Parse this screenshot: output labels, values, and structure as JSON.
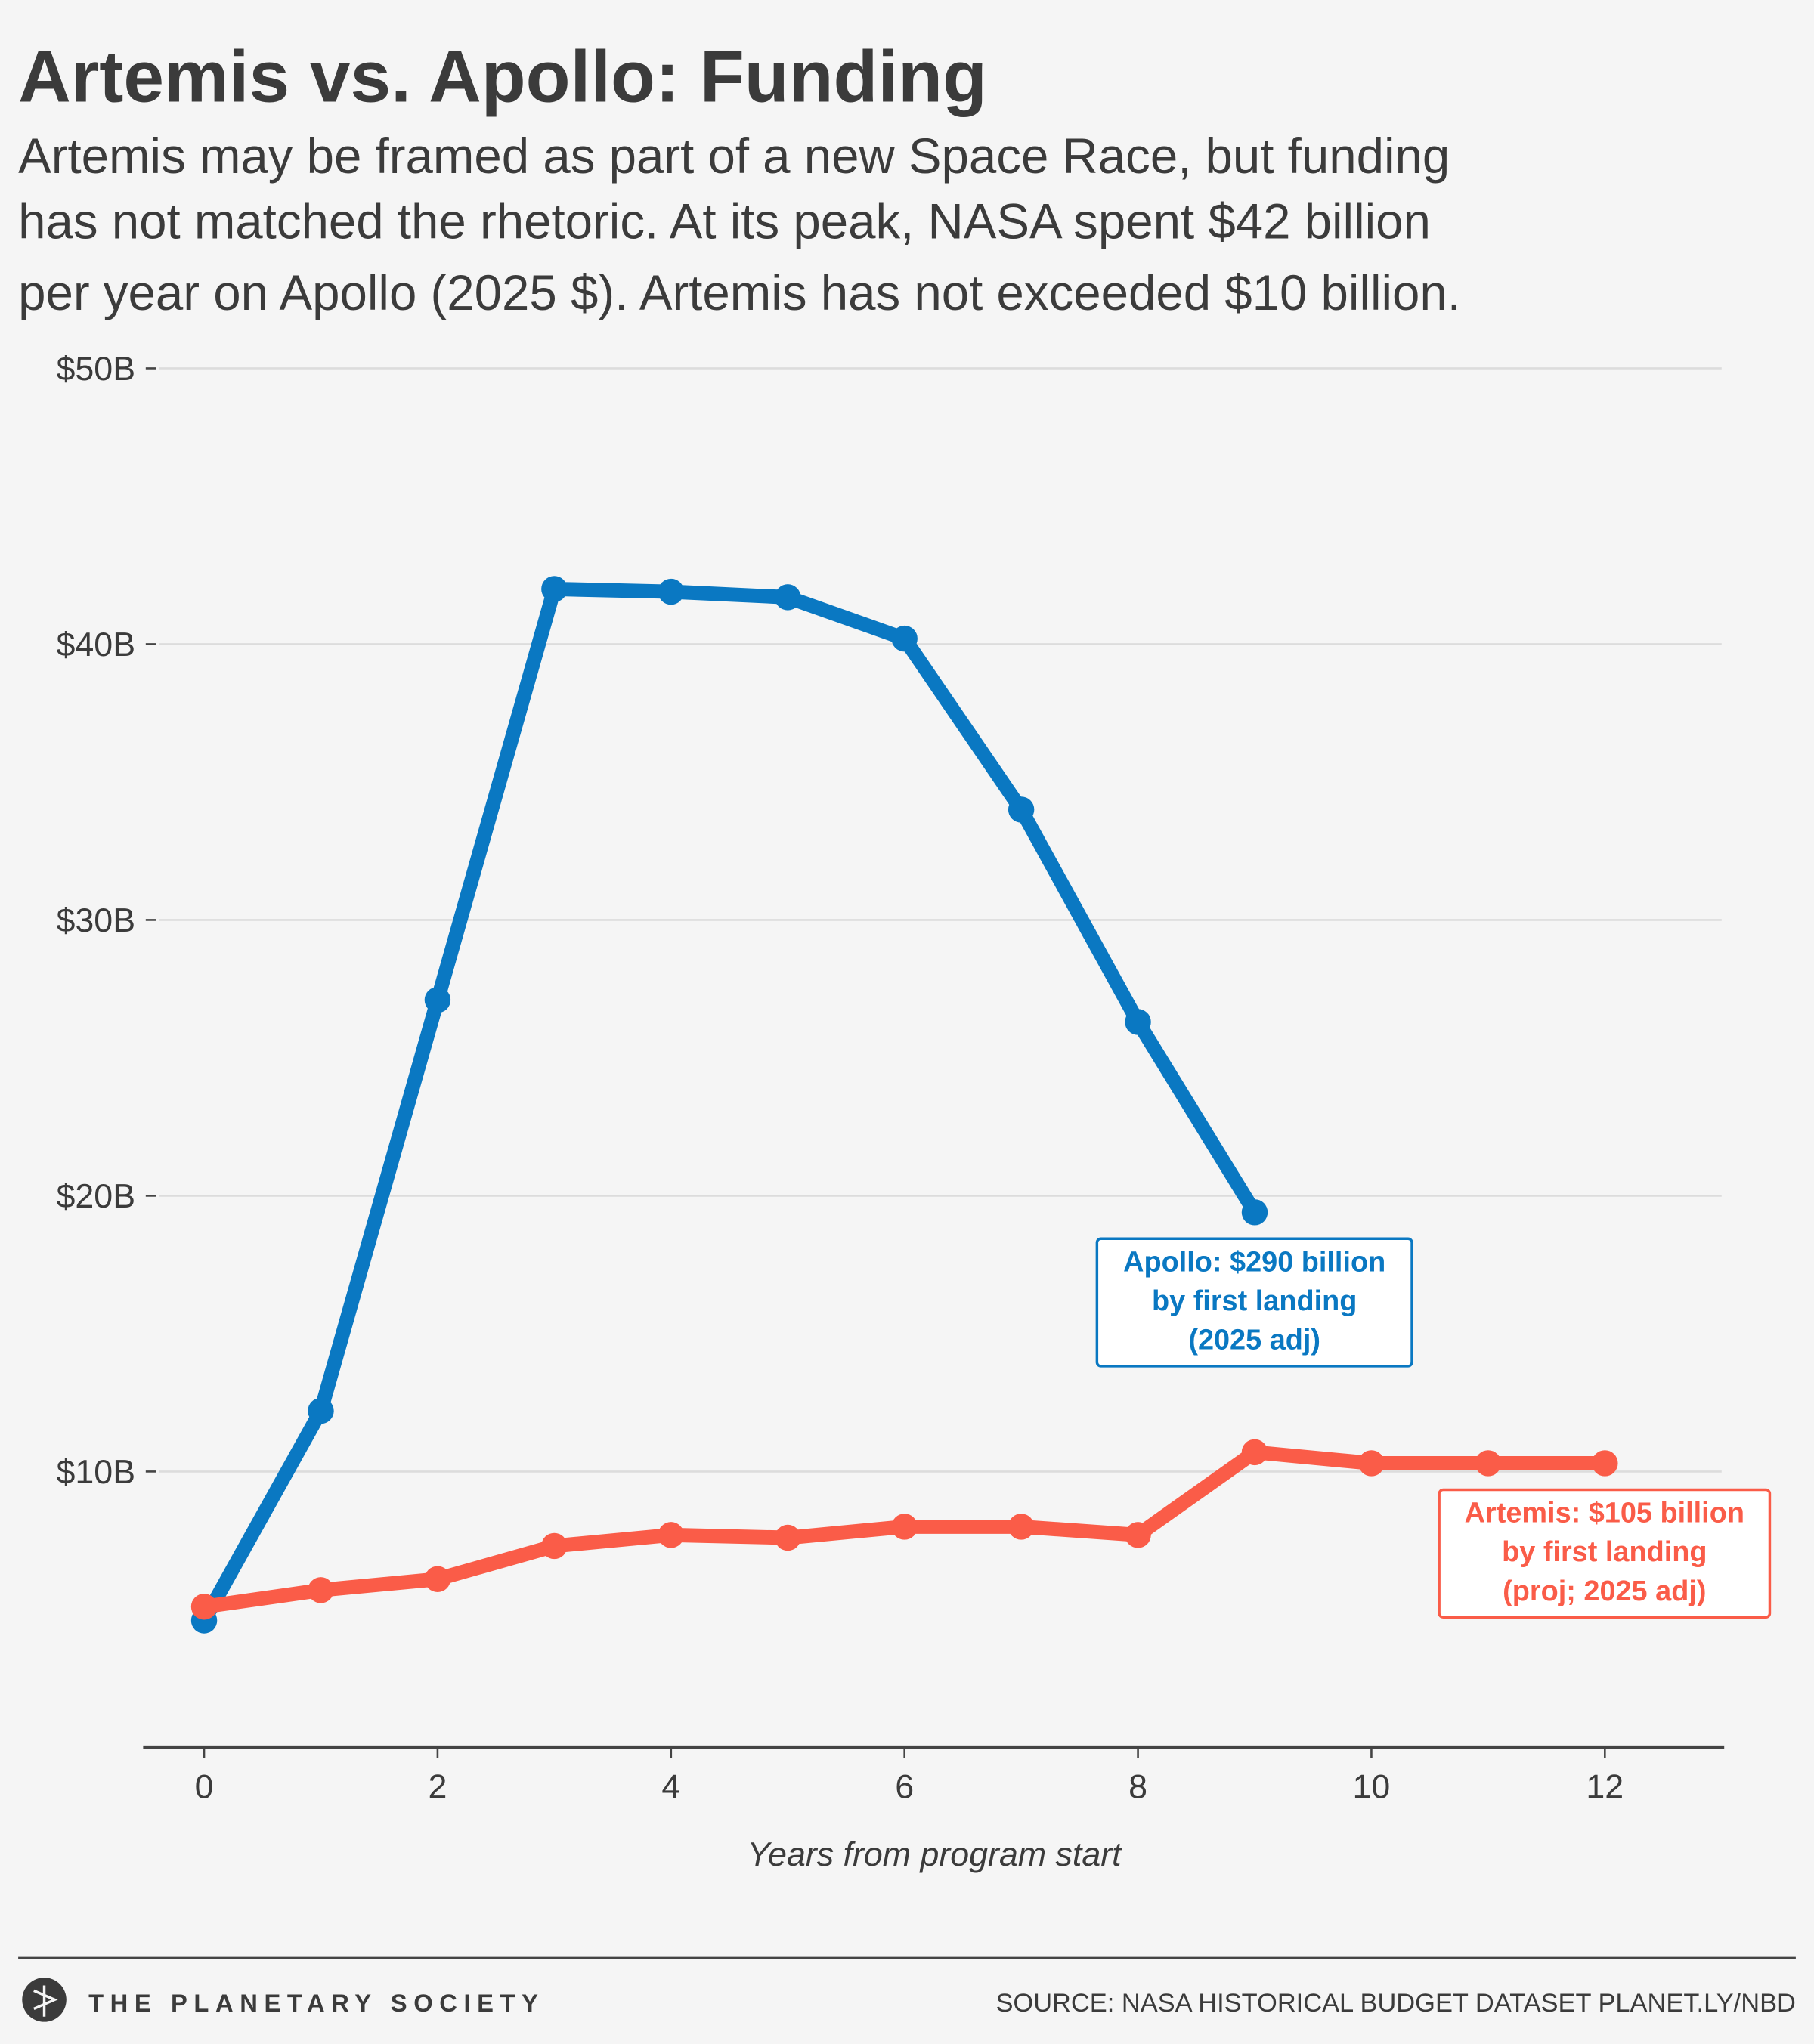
{
  "chart_data": {
    "type": "line",
    "title": "Artemis vs. Apollo: Funding",
    "subtitle": [
      "Artemis may be framed as part of a new Space Race, but funding",
      "has not matched the rhetoric. At its peak, NASA spent $42 billion",
      "per year on Apollo (2025 $). Artemis has not exceeded $10 billion."
    ],
    "x_label": "Years from program start",
    "x": [
      0,
      1,
      2,
      3,
      4,
      5,
      6,
      7,
      8,
      9,
      10,
      11,
      12
    ],
    "series": [
      {
        "name": "Apollo",
        "color": "#0a78c2",
        "values": [
          4.6,
          12.2,
          27.1,
          42.0,
          41.9,
          41.7,
          40.2,
          34.0,
          26.3,
          19.4,
          null,
          null,
          null
        ],
        "annotation": [
          "Apollo: $290 billion",
          "by first landing",
          "(2025 adj)"
        ]
      },
      {
        "name": "Artemis",
        "color": "#fa5c48",
        "values": [
          5.1,
          5.7,
          6.1,
          7.3,
          7.7,
          7.6,
          8.0,
          8.0,
          7.7,
          10.7,
          10.3,
          10.3,
          10.3
        ],
        "annotation": [
          "Artemis: $105 billion",
          "by first landing",
          "(proj; 2025 adj)"
        ]
      }
    ],
    "xlim": [
      -0.5,
      13
    ],
    "ylim": [
      0,
      50
    ],
    "xticks": [
      0,
      2,
      4,
      6,
      8,
      10,
      12
    ],
    "yticks": [
      {
        "value": 10,
        "label": "$10B"
      },
      {
        "value": 20,
        "label": "$20B"
      },
      {
        "value": 30,
        "label": "$30B"
      },
      {
        "value": 40,
        "label": "$40B"
      },
      {
        "value": 50,
        "label": "$50B"
      }
    ],
    "grid": true,
    "footer": {
      "organization": "THE PLANETARY SOCIETY",
      "source": "SOURCE: NASA HISTORICAL BUDGET DATASET PLANET.LY/NBD"
    }
  }
}
